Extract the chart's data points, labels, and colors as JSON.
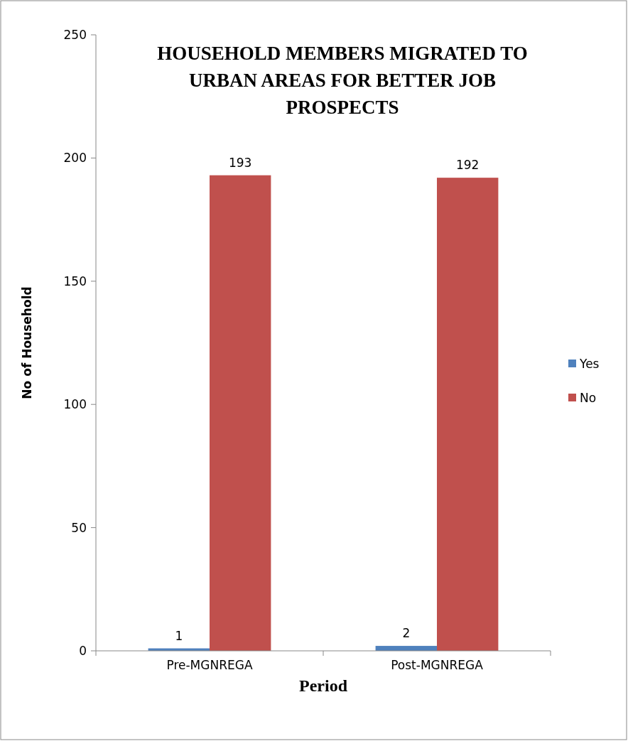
{
  "chart_data": {
    "type": "bar",
    "title": "HOUSEHOLD MEMBERS MIGRATED TO URBAN AREAS FOR BETTER JOB PROSPECTS",
    "xlabel": "Period",
    "ylabel": "No of Household",
    "categories": [
      "Pre-MGNREGA",
      "Post-MGNREGA"
    ],
    "series": [
      {
        "name": "Yes",
        "color": "#4f81bd",
        "values": [
          1,
          2
        ]
      },
      {
        "name": "No",
        "color": "#c0504d",
        "values": [
          193,
          192
        ]
      }
    ],
    "ylim": [
      0,
      250
    ],
    "yticks": [
      0,
      50,
      100,
      150,
      200,
      250
    ],
    "grid": false,
    "legend": "right",
    "data_labels": true
  }
}
